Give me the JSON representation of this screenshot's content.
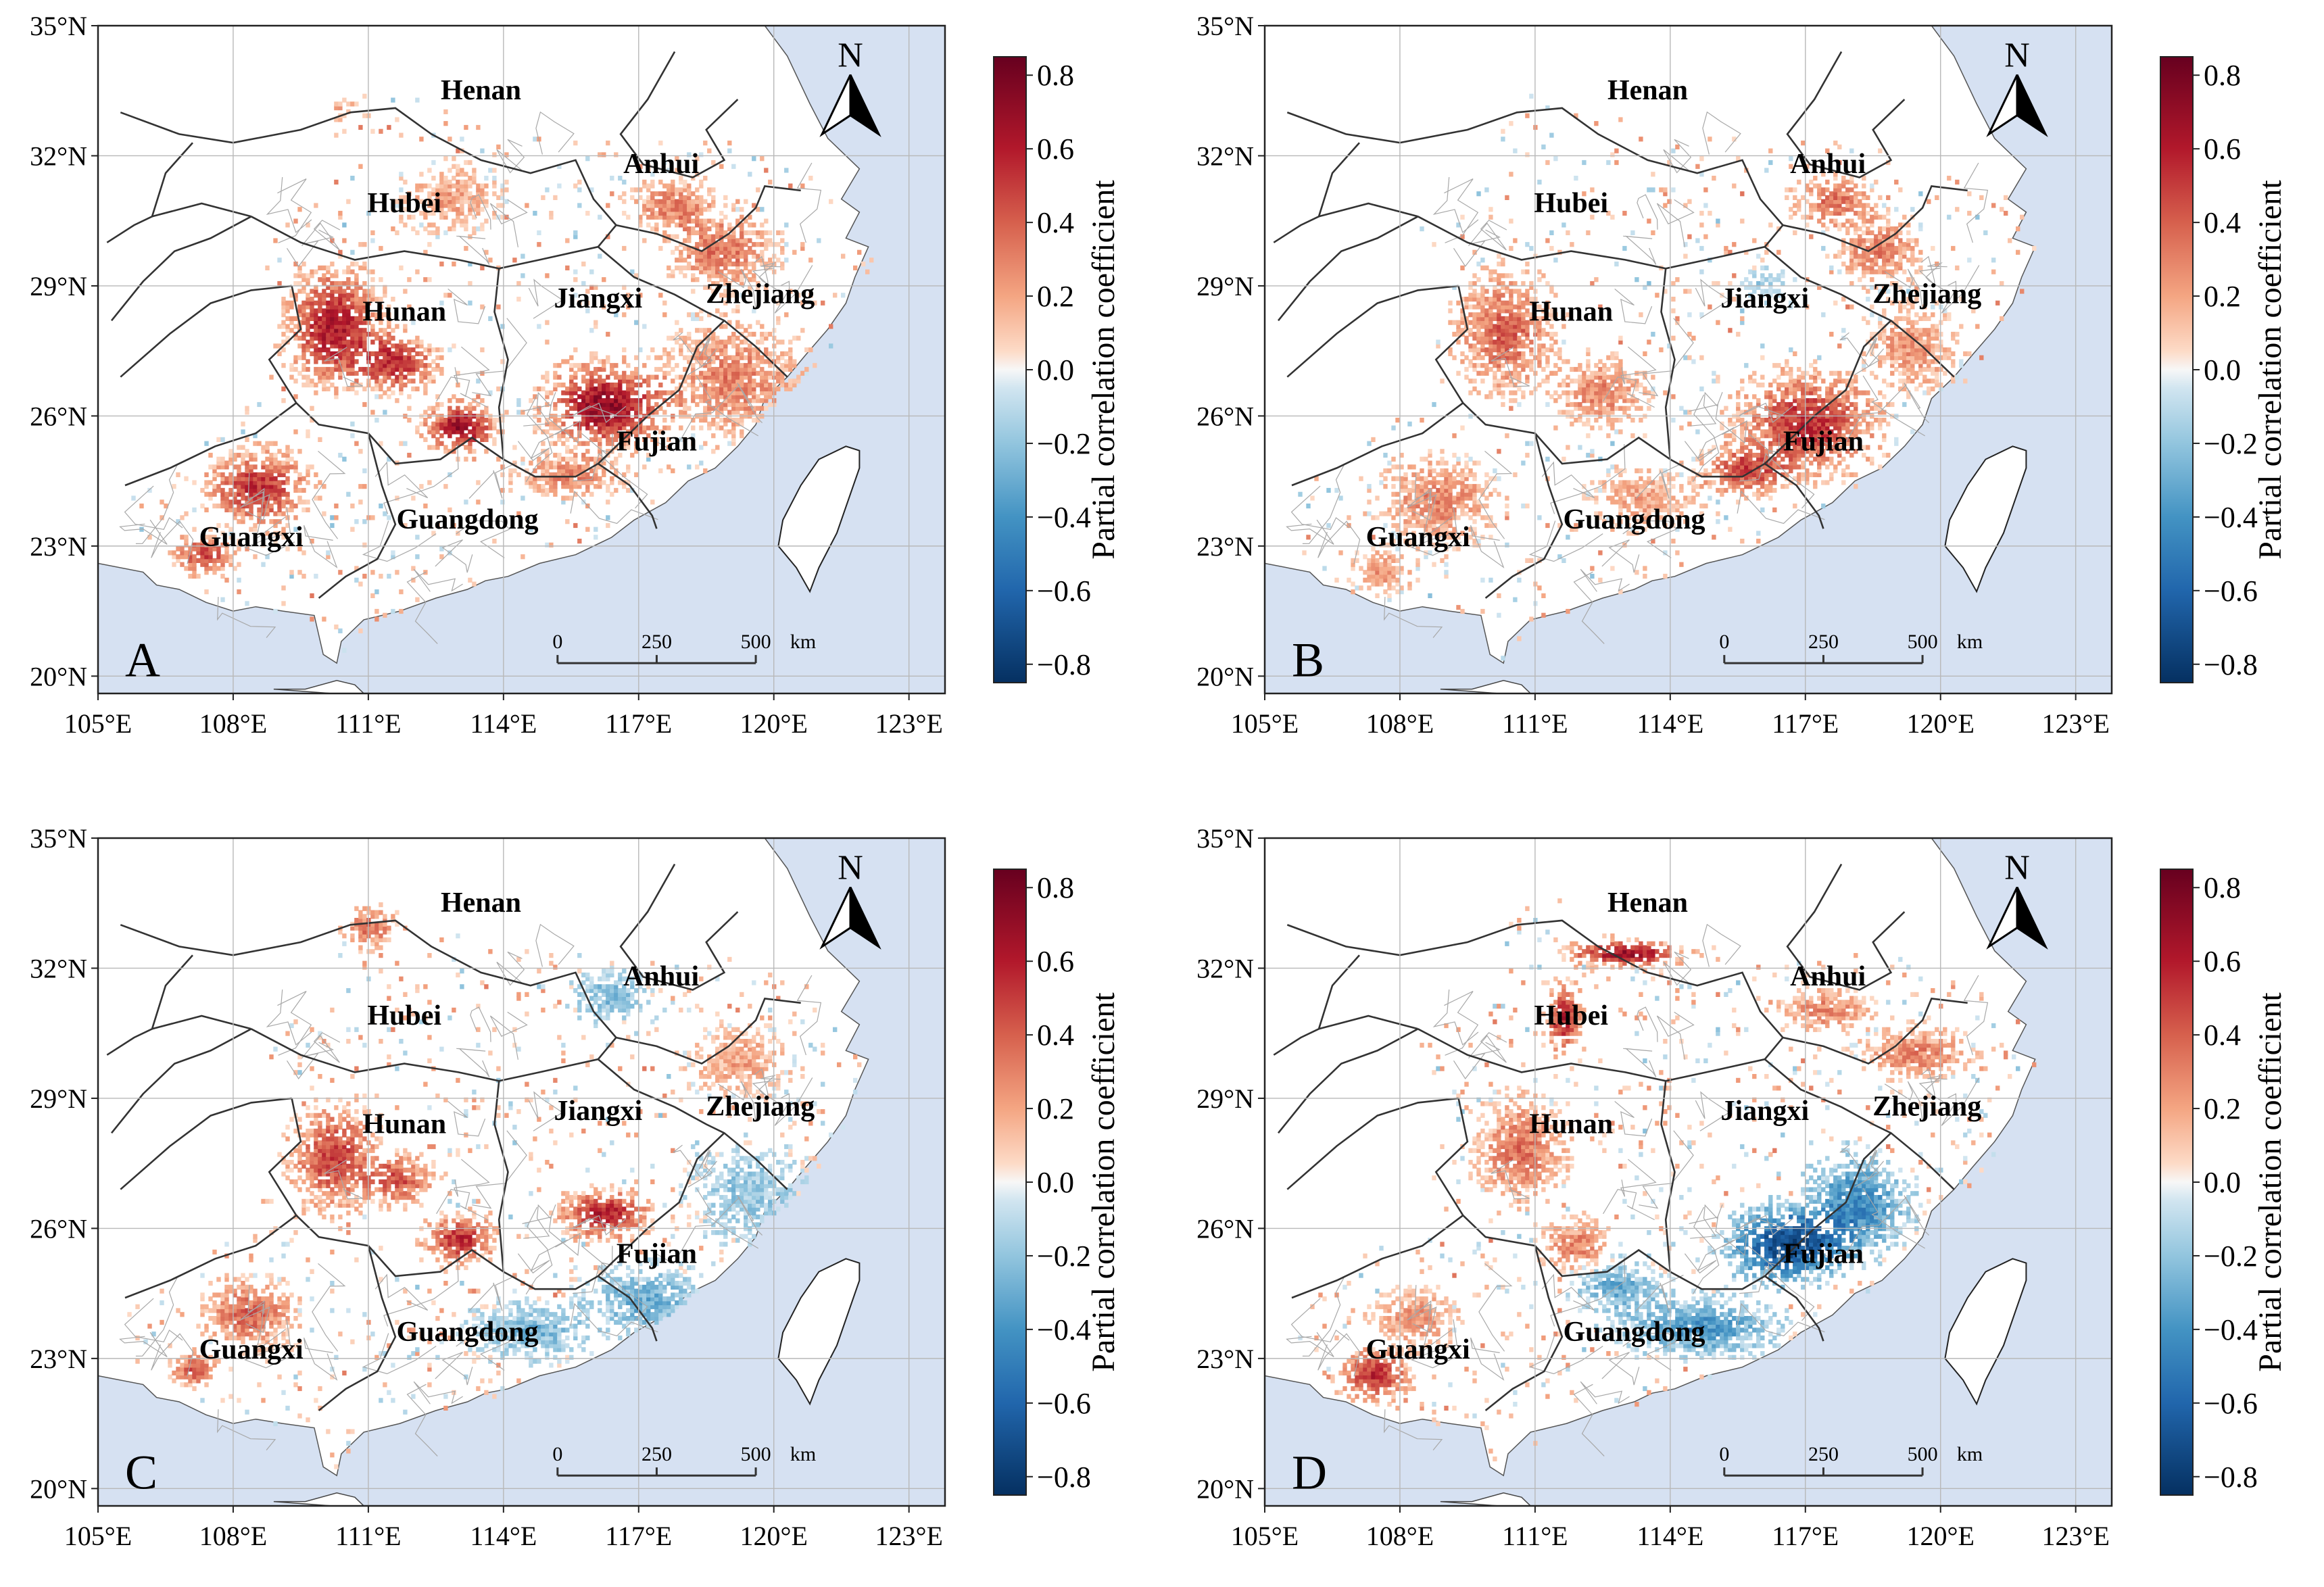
{
  "figure": {
    "x_ticks": [
      "105°E",
      "108°E",
      "111°E",
      "114°E",
      "117°E",
      "120°E",
      "123°E"
    ],
    "y_ticks": [
      "20°N",
      "23°N",
      "26°N",
      "29°N",
      "32°N",
      "35°N"
    ],
    "north_arrow": "N",
    "scale_bar": {
      "labels": [
        "0",
        "250",
        "500"
      ],
      "unit": "km"
    },
    "colorbar": {
      "title": "Partial correlation coefficient",
      "ticks": [
        "0.8",
        "0.6",
        "0.4",
        "0.2",
        "0.0",
        "−0.2",
        "−0.4",
        "−0.6",
        "−0.8"
      ],
      "colors": {
        "high": "#67001f",
        "mid": "#f7f7f7",
        "low": "#053061"
      }
    },
    "provinces": [
      "Henan",
      "Anhui",
      "Hubei",
      "Hunan",
      "Jiangxi",
      "Zhejiang",
      "Fujian",
      "Guangxi",
      "Guangdong"
    ],
    "colors": {
      "sea": "#d6e1f2",
      "land": "#ffffff",
      "border": "#333333",
      "grid": "#b8b8b8"
    }
  },
  "panels": [
    {
      "label": "A",
      "pattern": "positive-strong"
    },
    {
      "label": "B",
      "pattern": "positive-moderate"
    },
    {
      "label": "C",
      "pattern": "mixed-weak"
    },
    {
      "label": "D",
      "pattern": "negative-southeast"
    }
  ]
}
